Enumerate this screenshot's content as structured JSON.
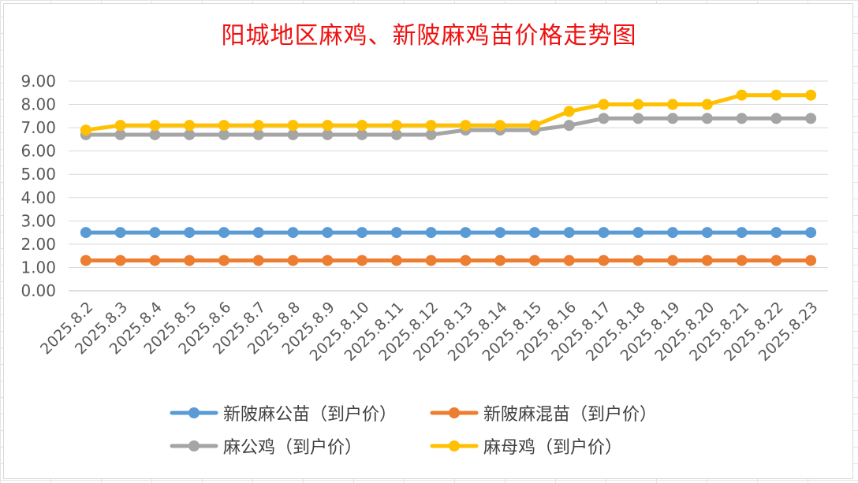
{
  "chart_data": {
    "type": "line",
    "title": "阳城地区麻鸡、新陂麻鸡苗价格走势图",
    "x": [
      "2025.8.2",
      "2025.8.3",
      "2025.8.4",
      "2025.8.5",
      "2025.8.6",
      "2025.8.7",
      "2025.8.8",
      "2025.8.9",
      "2025.8.10",
      "2025.8.11",
      "2025.8.12",
      "2025.8.13",
      "2025.8.14",
      "2025.8.15",
      "2025.8.16",
      "2025.8.17",
      "2025.8.18",
      "2025.8.19",
      "2025.8.20",
      "2025.8.21",
      "2025.8.22",
      "2025.8.23"
    ],
    "ylim": [
      0,
      9
    ],
    "yticks": [
      "0.00",
      "1.00",
      "2.00",
      "3.00",
      "4.00",
      "5.00",
      "6.00",
      "7.00",
      "8.00",
      "9.00"
    ],
    "grid": true,
    "legend_position": "bottom",
    "series": [
      {
        "name": "新陂麻公苗（到户价）",
        "color": "#5b9bd5",
        "values": [
          2.5,
          2.5,
          2.5,
          2.5,
          2.5,
          2.5,
          2.5,
          2.5,
          2.5,
          2.5,
          2.5,
          2.5,
          2.5,
          2.5,
          2.5,
          2.5,
          2.5,
          2.5,
          2.5,
          2.5,
          2.5,
          2.5
        ]
      },
      {
        "name": "新陂麻混苗（到户价）",
        "color": "#ed7d31",
        "values": [
          1.3,
          1.3,
          1.3,
          1.3,
          1.3,
          1.3,
          1.3,
          1.3,
          1.3,
          1.3,
          1.3,
          1.3,
          1.3,
          1.3,
          1.3,
          1.3,
          1.3,
          1.3,
          1.3,
          1.3,
          1.3,
          1.3
        ]
      },
      {
        "name": "麻公鸡（到户价）",
        "color": "#a5a5a5",
        "values": [
          6.7,
          6.7,
          6.7,
          6.7,
          6.7,
          6.7,
          6.7,
          6.7,
          6.7,
          6.7,
          6.7,
          6.9,
          6.9,
          6.9,
          7.1,
          7.4,
          7.4,
          7.4,
          7.4,
          7.4,
          7.4,
          7.4
        ]
      },
      {
        "name": "麻母鸡（到户价）",
        "color": "#ffc000",
        "values": [
          6.9,
          7.1,
          7.1,
          7.1,
          7.1,
          7.1,
          7.1,
          7.1,
          7.1,
          7.1,
          7.1,
          7.1,
          7.1,
          7.1,
          7.7,
          8.0,
          8.0,
          8.0,
          8.0,
          8.4,
          8.4,
          8.4
        ]
      }
    ]
  }
}
